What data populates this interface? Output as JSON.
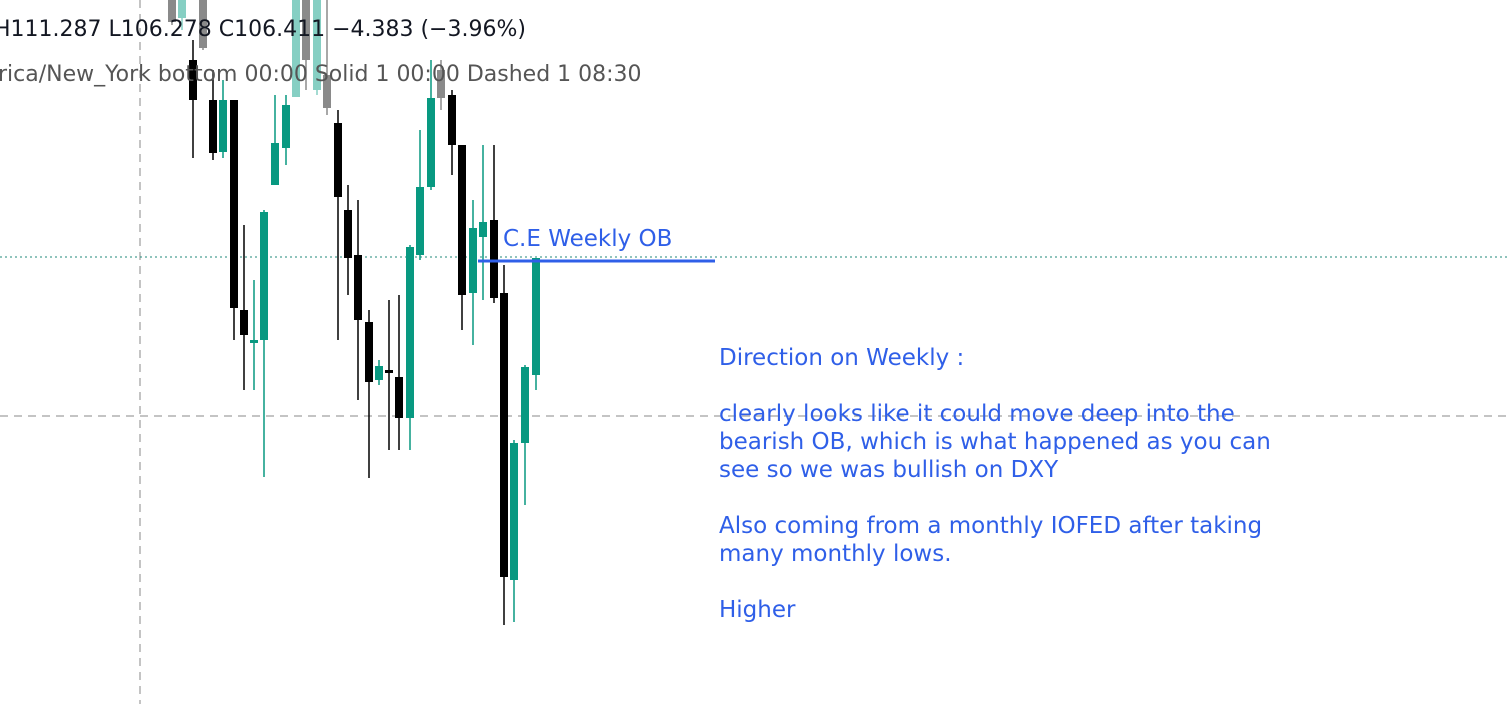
{
  "header": {
    "ohlc": "H111.287 L106.278 C106.411 −4.383 (−3.96%)",
    "sessions": "rica/New_York bottom 00:00 Solid 1 00:00 Dashed 1 08:30"
  },
  "annotation": "C.E Weekly OB",
  "note": {
    "lines": [
      "Direction on Weekly :",
      "clearly looks like it could move deep into the",
      "bearish OB, which is what happened as you can",
      "see so we was bullish on DXY",
      "Also coming from a monthly IOFED after taking",
      "many monthly lows.",
      "Higher"
    ]
  }
}
